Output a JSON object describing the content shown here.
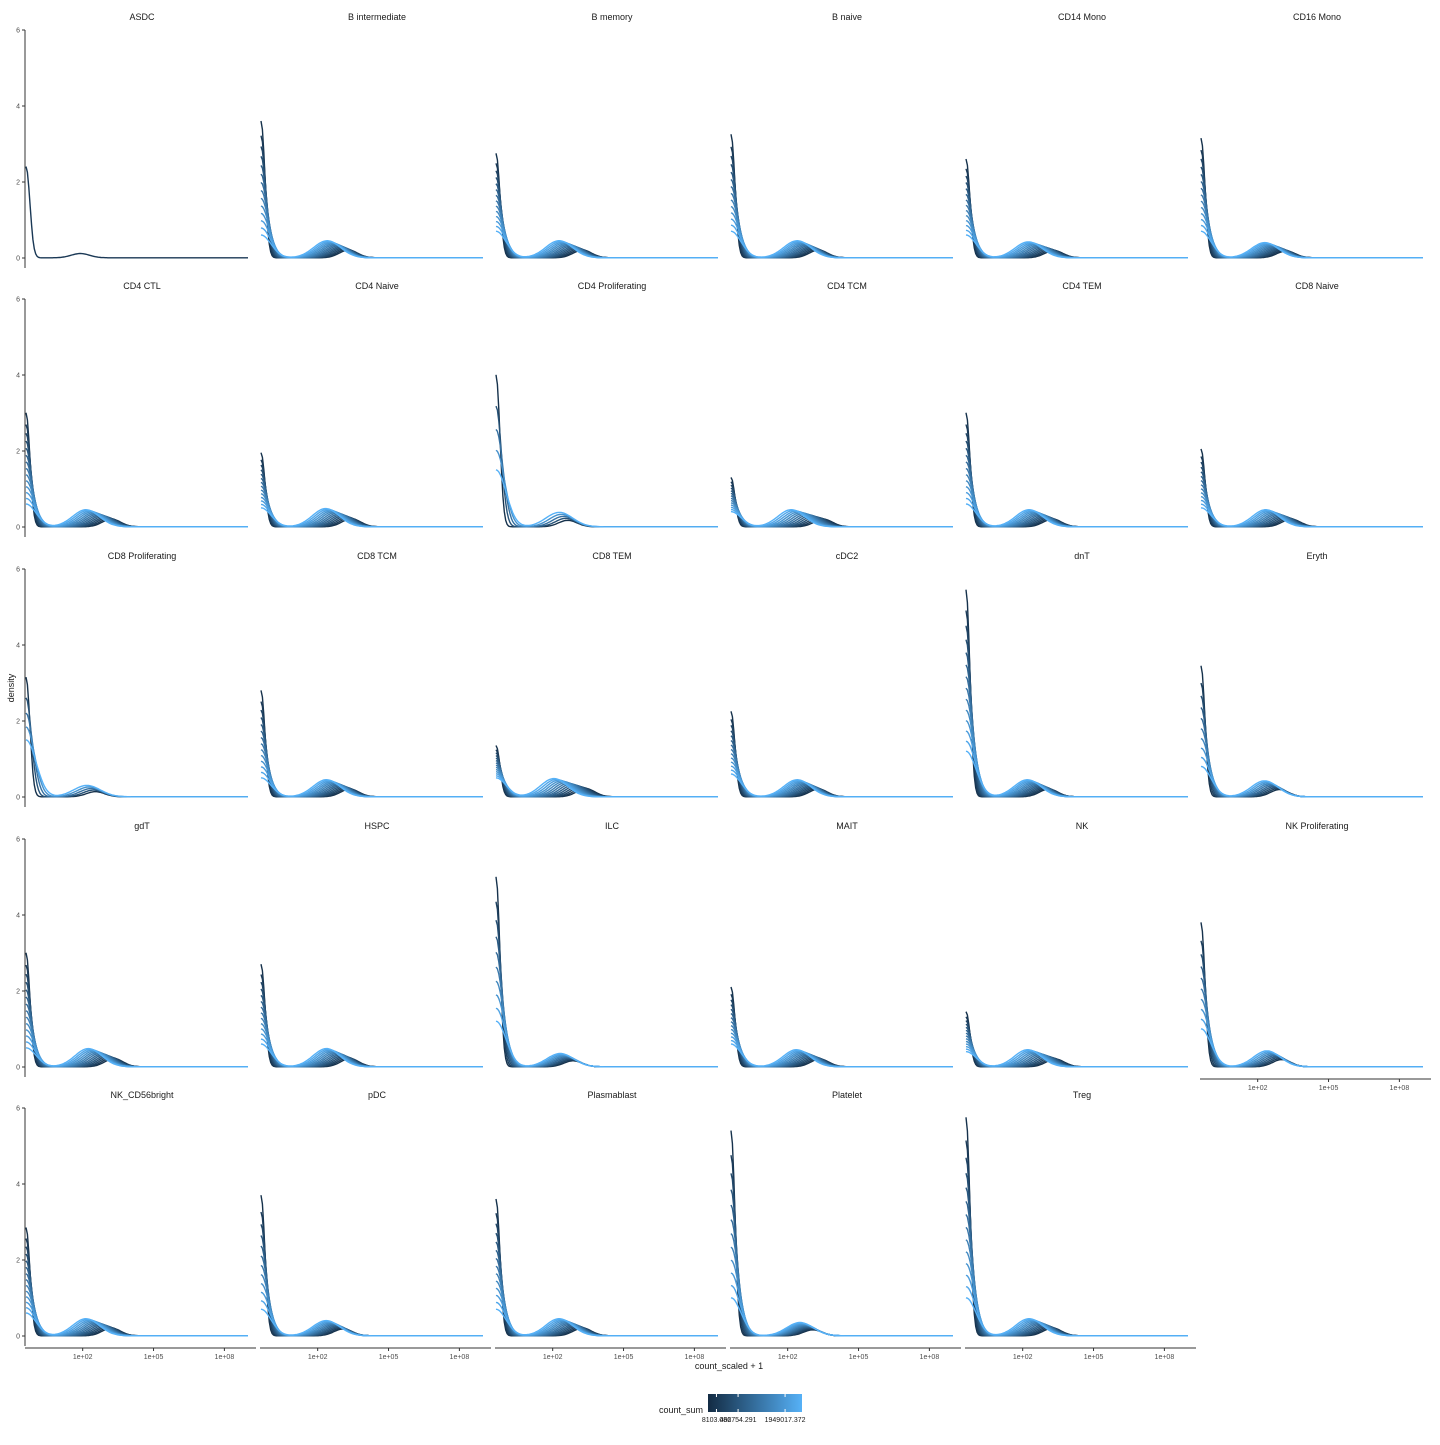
{
  "chart_data": {
    "type": "line",
    "subtype": "density-facet",
    "xlabel": "count_scaled + 1",
    "ylabel": "density",
    "x_scale": "log10",
    "y_ticks": [
      "0",
      "2",
      "4",
      "6"
    ],
    "x_ticks": [
      "1e+02",
      "1e+05",
      "1e+08"
    ],
    "ylim": [
      0,
      6
    ],
    "grid": false,
    "panels": [
      {
        "title": "ASDC",
        "peak": 2.4,
        "low": 2.4,
        "bump": 0.25,
        "bumpLogX": 1.9,
        "lines": 1,
        "spread": 0.0
      },
      {
        "title": "B intermediate",
        "peak": 3.6,
        "low": 0.6,
        "bump": 0.45,
        "bumpLogX": 2.7,
        "lines": 14,
        "spread": 1.0
      },
      {
        "title": "B memory",
        "peak": 2.75,
        "low": 0.7,
        "bump": 0.45,
        "bumpLogX": 2.6,
        "lines": 14,
        "spread": 1.1
      },
      {
        "title": "B naive",
        "peak": 3.25,
        "low": 0.7,
        "bump": 0.45,
        "bumpLogX": 2.7,
        "lines": 14,
        "spread": 1.0
      },
      {
        "title": "CD14 Mono",
        "peak": 2.6,
        "low": 0.6,
        "bump": 0.42,
        "bumpLogX": 2.6,
        "lines": 14,
        "spread": 1.2
      },
      {
        "title": "CD16 Mono",
        "peak": 3.15,
        "low": 0.7,
        "bump": 0.4,
        "bumpLogX": 2.6,
        "lines": 14,
        "spread": 1.0
      },
      {
        "title": "CD4 CTL",
        "peak": 3.0,
        "low": 0.6,
        "bump": 0.45,
        "bumpLogX": 2.5,
        "lines": 14,
        "spread": 1.2
      },
      {
        "title": "CD4 Naive",
        "peak": 1.95,
        "low": 0.5,
        "bump": 0.48,
        "bumpLogX": 2.7,
        "lines": 14,
        "spread": 1.2
      },
      {
        "title": "CD4 Proliferating",
        "peak": 4.0,
        "low": 1.5,
        "bump": 0.38,
        "bumpLogX": 2.4,
        "lines": 5,
        "spread": 0.4
      },
      {
        "title": "CD4 TCM",
        "peak": 1.3,
        "low": 0.4,
        "bump": 0.45,
        "bumpLogX": 2.6,
        "lines": 14,
        "spread": 1.5
      },
      {
        "title": "CD4 TEM",
        "peak": 3.0,
        "low": 0.6,
        "bump": 0.45,
        "bumpLogX": 2.6,
        "lines": 14,
        "spread": 1.1
      },
      {
        "title": "CD8 Naive",
        "peak": 2.05,
        "low": 0.5,
        "bump": 0.45,
        "bumpLogX": 2.7,
        "lines": 14,
        "spread": 1.2
      },
      {
        "title": "CD8 Proliferating",
        "peak": 3.15,
        "low": 1.5,
        "bump": 0.3,
        "bumpLogX": 2.3,
        "lines": 5,
        "spread": 0.4
      },
      {
        "title": "CD8 TCM",
        "peak": 2.8,
        "low": 0.5,
        "bump": 0.45,
        "bumpLogX": 2.7,
        "lines": 14,
        "spread": 1.1
      },
      {
        "title": "CD8 TEM",
        "peak": 1.35,
        "low": 0.5,
        "bump": 0.48,
        "bumpLogX": 2.5,
        "lines": 14,
        "spread": 1.5
      },
      {
        "title": "cDC2",
        "peak": 2.25,
        "low": 0.6,
        "bump": 0.45,
        "bumpLogX": 2.7,
        "lines": 14,
        "spread": 1.0
      },
      {
        "title": "dnT",
        "peak": 5.45,
        "low": 1.2,
        "bump": 0.45,
        "bumpLogX": 2.5,
        "lines": 14,
        "spread": 1.0
      },
      {
        "title": "Eryth",
        "peak": 3.45,
        "low": 0.8,
        "bump": 0.42,
        "bumpLogX": 2.5,
        "lines": 10,
        "spread": 0.7
      },
      {
        "title": "gdT",
        "peak": 3.0,
        "low": 0.5,
        "bump": 0.48,
        "bumpLogX": 2.6,
        "lines": 14,
        "spread": 1.2
      },
      {
        "title": "HSPC",
        "peak": 2.7,
        "low": 0.6,
        "bump": 0.48,
        "bumpLogX": 2.7,
        "lines": 14,
        "spread": 1.1
      },
      {
        "title": "ILC",
        "peak": 5.0,
        "low": 1.2,
        "bump": 0.35,
        "bumpLogX": 2.5,
        "lines": 10,
        "spread": 0.6
      },
      {
        "title": "MAIT",
        "peak": 2.1,
        "low": 0.6,
        "bump": 0.45,
        "bumpLogX": 2.7,
        "lines": 14,
        "spread": 1.1
      },
      {
        "title": "NK",
        "peak": 1.45,
        "low": 0.4,
        "bump": 0.45,
        "bumpLogX": 2.6,
        "lines": 14,
        "spread": 1.3
      },
      {
        "title": "NK Proliferating",
        "peak": 3.8,
        "low": 1.0,
        "bump": 0.42,
        "bumpLogX": 2.6,
        "lines": 10,
        "spread": 0.7
      },
      {
        "title": "NK_CD56bright",
        "peak": 2.85,
        "low": 0.6,
        "bump": 0.45,
        "bumpLogX": 2.5,
        "lines": 14,
        "spread": 1.2
      },
      {
        "title": "pDC",
        "peak": 3.7,
        "low": 0.7,
        "bump": 0.4,
        "bumpLogX": 2.6,
        "lines": 12,
        "spread": 0.8
      },
      {
        "title": "Plasmablast",
        "peak": 3.6,
        "low": 0.7,
        "bump": 0.45,
        "bumpLogX": 2.6,
        "lines": 14,
        "spread": 1.1
      },
      {
        "title": "Platelet",
        "peak": 5.4,
        "low": 1.0,
        "bump": 0.35,
        "bumpLogX": 2.7,
        "lines": 12,
        "spread": 0.6
      },
      {
        "title": "Treg",
        "peak": 5.75,
        "low": 1.0,
        "bump": 0.45,
        "bumpLogX": 2.6,
        "lines": 14,
        "spread": 1.1
      }
    ],
    "legend": {
      "title": "count_sum",
      "position": "bottom",
      "labels": [
        "8103.086",
        "462754.291",
        "1949017.372"
      ],
      "color_low": "#132B43",
      "color_high": "#56B1F7"
    }
  }
}
